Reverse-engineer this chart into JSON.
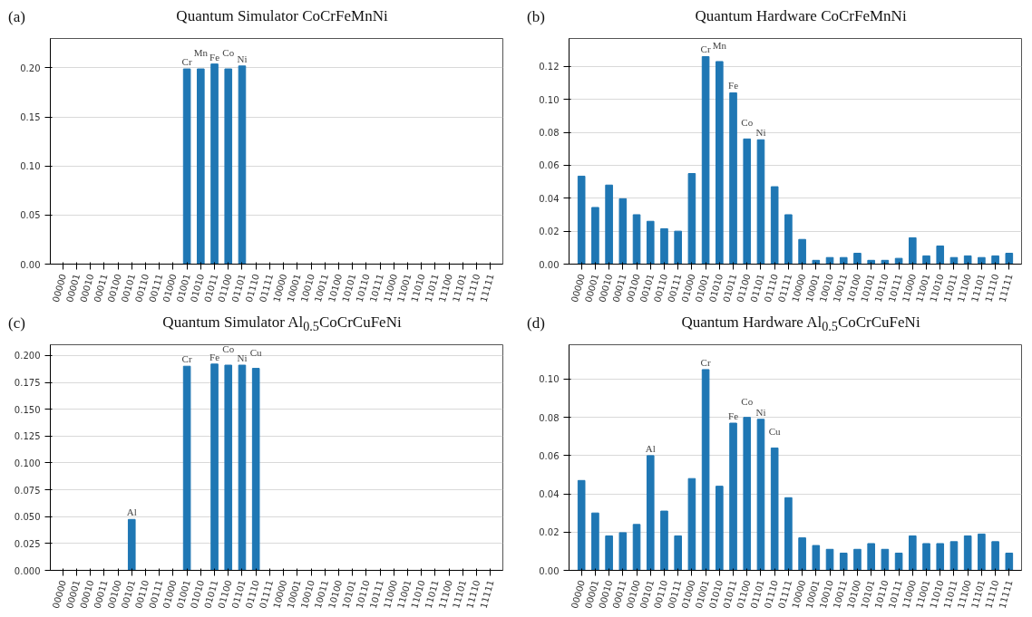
{
  "chart_data": [
    {
      "type": "bar",
      "title": "Quantum Simulator CoCrFeMnNi",
      "annotations": [
        "(a)",
        {
          "text": "Cr",
          "x": "01001",
          "y": 0.199
        },
        {
          "text": "Mn",
          "x": "01010",
          "y": 0.199
        },
        {
          "text": "Fe",
          "x": "01011",
          "y": 0.204
        },
        {
          "text": "Co",
          "x": "01100",
          "y": 0.199
        },
        {
          "text": "Ni",
          "x": "01101",
          "y": 0.202
        }
      ],
      "categories": [
        "00000",
        "00001",
        "00010",
        "00011",
        "00100",
        "00101",
        "00110",
        "00111",
        "01000",
        "01001",
        "01010",
        "01011",
        "01100",
        "01101",
        "01110",
        "01111",
        "10000",
        "10001",
        "10010",
        "10011",
        "10100",
        "10101",
        "10110",
        "10111",
        "11000",
        "11001",
        "11010",
        "11011",
        "11100",
        "11101",
        "11110",
        "11111"
      ],
      "values": [
        0,
        0,
        0,
        0,
        0,
        0,
        0,
        0,
        0,
        0.199,
        0.199,
        0.204,
        0.199,
        0.202,
        0,
        0,
        0,
        0,
        0,
        0,
        0,
        0,
        0,
        0,
        0,
        0,
        0,
        0,
        0,
        0,
        0,
        0
      ],
      "color": "#1f77b4",
      "ylim": [
        0,
        0.23
      ],
      "yticks": [
        {
          "value": 0,
          "label": "0.00"
        },
        {
          "value": 0.05,
          "label": "0.05"
        },
        {
          "value": 0.1,
          "label": "0.10"
        },
        {
          "value": 0.15,
          "label": "0.15"
        },
        {
          "value": 0.2,
          "label": "0.20"
        }
      ],
      "grid": "y"
    },
    {
      "type": "bar",
      "title": "Quantum Hardware CoCrFeMnNi",
      "annotations": [
        "(b)",
        {
          "text": "Cr",
          "x": "01001",
          "y": 0.126
        },
        {
          "text": "Mn",
          "x": "01010",
          "y": 0.123
        },
        {
          "text": "Fe",
          "x": "01011",
          "y": 0.104
        },
        {
          "text": "Co",
          "x": "01100",
          "y": 0.076
        },
        {
          "text": "Ni",
          "x": "01101",
          "y": 0.0755
        }
      ],
      "categories": [
        "00000",
        "00001",
        "00010",
        "00011",
        "00100",
        "00101",
        "00110",
        "00111",
        "01000",
        "01001",
        "01010",
        "01011",
        "01100",
        "01101",
        "01110",
        "01111",
        "10000",
        "10001",
        "10010",
        "10011",
        "10100",
        "10101",
        "10110",
        "10111",
        "11000",
        "11001",
        "11010",
        "11011",
        "11100",
        "11101",
        "11110",
        "11111"
      ],
      "values": [
        0.0534,
        0.0344,
        0.048,
        0.0397,
        0.03,
        0.026,
        0.0215,
        0.02,
        0.055,
        0.126,
        0.123,
        0.104,
        0.076,
        0.0755,
        0.047,
        0.03,
        0.015,
        0.0023,
        0.004,
        0.004,
        0.0066,
        0.0023,
        0.0023,
        0.0035,
        0.016,
        0.005,
        0.011,
        0.004,
        0.005,
        0.004,
        0.005,
        0.0066
      ],
      "color": "#1f77b4",
      "ylim": [
        0,
        0.137
      ],
      "yticks": [
        {
          "value": 0,
          "label": "0.00"
        },
        {
          "value": 0.02,
          "label": "0.02"
        },
        {
          "value": 0.04,
          "label": "0.04"
        },
        {
          "value": 0.06,
          "label": "0.06"
        },
        {
          "value": 0.08,
          "label": "0.08"
        },
        {
          "value": 0.1,
          "label": "0.10"
        },
        {
          "value": 0.12,
          "label": "0.12"
        }
      ],
      "grid": "y"
    },
    {
      "type": "bar",
      "title": "Quantum Simulator Al$_{0.5}$CoCrCuFeNi",
      "annotations": [
        "(c)",
        {
          "text": "Al",
          "x": "00101",
          "y": 0.0474
        },
        {
          "text": "Cr",
          "x": "01001",
          "y": 0.19
        },
        {
          "text": "Fe",
          "x": "01011",
          "y": 0.192
        },
        {
          "text": "Co",
          "x": "01100",
          "y": 0.191
        },
        {
          "text": "Ni",
          "x": "01101",
          "y": 0.191
        },
        {
          "text": "Cu",
          "x": "01110",
          "y": 0.188
        }
      ],
      "categories": [
        "00000",
        "00001",
        "00010",
        "00011",
        "00100",
        "00101",
        "00110",
        "00111",
        "01000",
        "01001",
        "01010",
        "01011",
        "01100",
        "01101",
        "01110",
        "01111",
        "10000",
        "10001",
        "10010",
        "10011",
        "10100",
        "10101",
        "10110",
        "10111",
        "11000",
        "11001",
        "11010",
        "11011",
        "11100",
        "11101",
        "11110",
        "11111"
      ],
      "values": [
        0,
        0,
        0,
        0,
        0,
        0.0474,
        0,
        0,
        0,
        0.19,
        0,
        0.192,
        0.191,
        0.191,
        0.188,
        0,
        0,
        0,
        0,
        0,
        0,
        0,
        0,
        0,
        0,
        0,
        0,
        0,
        0,
        0,
        0,
        0
      ],
      "color": "#1f77b4",
      "ylim": [
        0,
        0.21
      ],
      "yticks": [
        {
          "value": 0,
          "label": "0.000"
        },
        {
          "value": 0.025,
          "label": "0.025"
        },
        {
          "value": 0.05,
          "label": "0.050"
        },
        {
          "value": 0.075,
          "label": "0.075"
        },
        {
          "value": 0.1,
          "label": "0.100"
        },
        {
          "value": 0.125,
          "label": "0.125"
        },
        {
          "value": 0.15,
          "label": "0.150"
        },
        {
          "value": 0.175,
          "label": "0.175"
        },
        {
          "value": 0.2,
          "label": "0.200"
        }
      ],
      "grid": "y"
    },
    {
      "type": "bar",
      "title": "Quantum Hardware Al$_{0.5}$CoCrCuFeNi",
      "annotations": [
        "(d)",
        {
          "text": "Al",
          "x": "00101",
          "y": 0.06
        },
        {
          "text": "Cr",
          "x": "01001",
          "y": 0.105
        },
        {
          "text": "Fe",
          "x": "01011",
          "y": 0.077
        },
        {
          "text": "Co",
          "x": "01100",
          "y": 0.08
        },
        {
          "text": "Ni",
          "x": "01101",
          "y": 0.079
        },
        {
          "text": "Cu",
          "x": "01110",
          "y": 0.064
        }
      ],
      "categories": [
        "00000",
        "00001",
        "00010",
        "00011",
        "00100",
        "00101",
        "00110",
        "00111",
        "01000",
        "01001",
        "01010",
        "01011",
        "01100",
        "01101",
        "01110",
        "01111",
        "10000",
        "10001",
        "10010",
        "10011",
        "10100",
        "10101",
        "10110",
        "10111",
        "11000",
        "11001",
        "11010",
        "11011",
        "11100",
        "11101",
        "11110",
        "11111"
      ],
      "values": [
        0.047,
        0.03,
        0.018,
        0.0197,
        0.024,
        0.06,
        0.031,
        0.018,
        0.048,
        0.105,
        0.044,
        0.077,
        0.08,
        0.079,
        0.064,
        0.038,
        0.017,
        0.013,
        0.011,
        0.009,
        0.011,
        0.014,
        0.011,
        0.009,
        0.018,
        0.014,
        0.014,
        0.015,
        0.018,
        0.019,
        0.015,
        0.009
      ],
      "color": "#1f77b4",
      "ylim": [
        0,
        0.118
      ],
      "yticks": [
        {
          "value": 0,
          "label": "0.00"
        },
        {
          "value": 0.02,
          "label": "0.02"
        },
        {
          "value": 0.04,
          "label": "0.04"
        },
        {
          "value": 0.06,
          "label": "0.06"
        },
        {
          "value": 0.08,
          "label": "0.08"
        },
        {
          "value": 0.1,
          "label": "0.10"
        }
      ],
      "grid": "y"
    }
  ]
}
